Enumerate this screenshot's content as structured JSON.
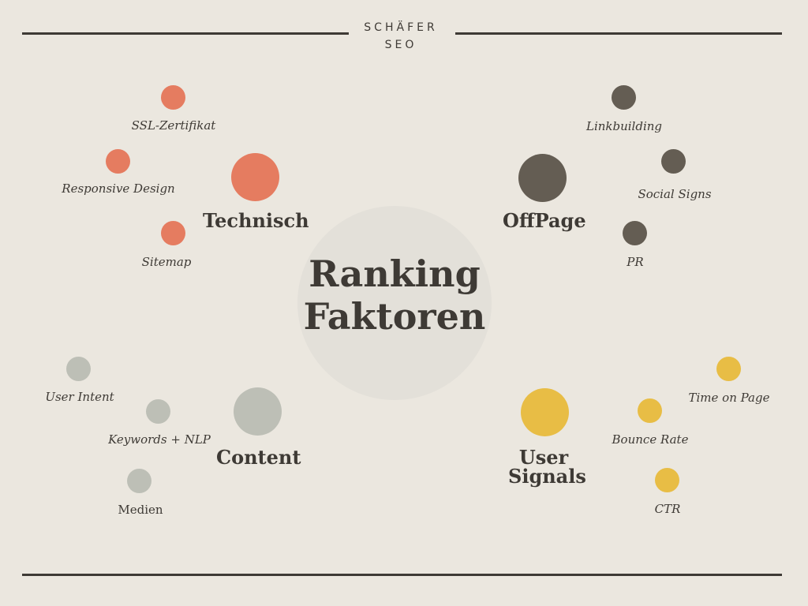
{
  "header": {
    "brand_line1": "SCHÄFER",
    "brand_line2": "SEO"
  },
  "center": {
    "line1": "Ranking",
    "line2": "Faktoren"
  },
  "colors": {
    "background": "#ebe7df",
    "center_circle": "#e3e0d9",
    "technisch": "#e57c60",
    "offpage": "#645d53",
    "content": "#bdbfb6",
    "user_signals": "#e8bd45",
    "text": "#3e3a35"
  },
  "categories": {
    "technisch": {
      "label": "Technisch",
      "items": [
        "SSL-Zertifikat",
        "Responsive Design",
        "Sitemap"
      ]
    },
    "offpage": {
      "label": "OffPage",
      "items": [
        "Linkbuilding",
        "Social Signs",
        "PR"
      ]
    },
    "content": {
      "label": "Content",
      "items": [
        "User Intent",
        "Keywords + NLP",
        "Medien"
      ]
    },
    "user_signals": {
      "label_line1": "User",
      "label_line2": "Signals",
      "items": [
        "Time on Page",
        "Bounce Rate",
        "CTR"
      ]
    }
  }
}
